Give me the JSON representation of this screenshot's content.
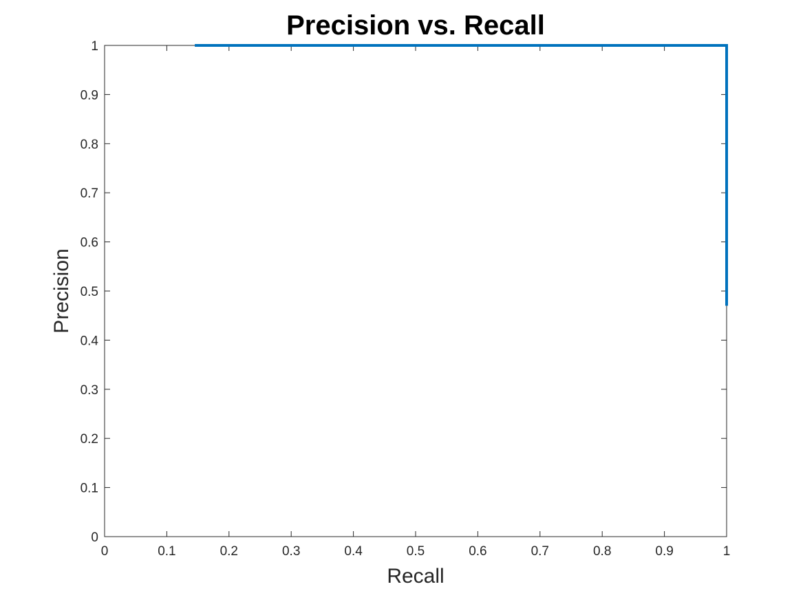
{
  "chart_data": {
    "type": "line",
    "title": "Precision vs. Recall",
    "xlabel": "Recall",
    "ylabel": "Precision",
    "xlim": [
      0,
      1
    ],
    "ylim": [
      0,
      1
    ],
    "x_ticks": [
      "0",
      "0.1",
      "0.2",
      "0.3",
      "0.4",
      "0.5",
      "0.6",
      "0.7",
      "0.8",
      "0.9",
      "1"
    ],
    "y_ticks": [
      "0",
      "0.1",
      "0.2",
      "0.3",
      "0.4",
      "0.5",
      "0.6",
      "0.7",
      "0.8",
      "0.9",
      "1"
    ],
    "grid": false,
    "legend": "none",
    "series": [
      {
        "color": "#0072BD",
        "x": [
          0.145,
          1.0,
          1.0
        ],
        "y": [
          1.0,
          1.0,
          0.47
        ]
      }
    ],
    "colors": {
      "axis": "#262626",
      "series": "#0072BD"
    }
  }
}
